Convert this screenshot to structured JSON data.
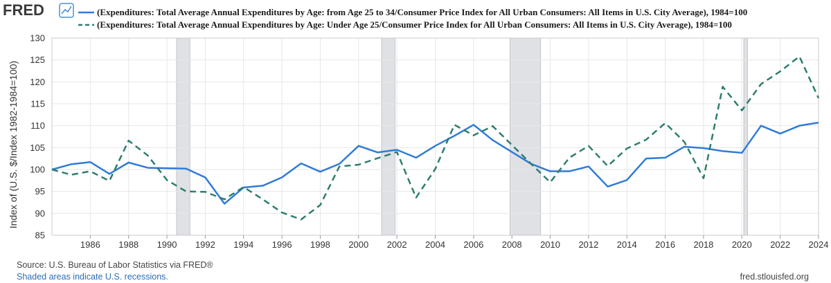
{
  "brand": {
    "logo_text": "FRED",
    "logo_icon": "line-chart-icon"
  },
  "footer": {
    "source": "Source: U.S. Bureau of Labor Statistics via FRED®",
    "shaded": "Shaded areas indicate U.S. recessions.",
    "site": "fred.stlouisfed.org"
  },
  "colors": {
    "series_a": "#2f7bd8",
    "series_b": "#2e7d6e",
    "recession": "#dfe1e5",
    "grid": "#e6e6e6",
    "plot_border": "#c8c8c8"
  },
  "chart_data": {
    "type": "line",
    "title": "",
    "xlabel": "",
    "ylabel": "Index of (U.S. $/Index 1982-1984=100)",
    "xlim": [
      1984,
      2024
    ],
    "ylim": [
      85,
      130
    ],
    "yticks": [
      85,
      90,
      95,
      100,
      105,
      110,
      115,
      120,
      125,
      130
    ],
    "xticks": [
      1986,
      1988,
      1990,
      1992,
      1994,
      1996,
      1998,
      2000,
      2002,
      2004,
      2006,
      2008,
      2010,
      2012,
      2014,
      2016,
      2018,
      2020,
      2022,
      2024
    ],
    "grid": true,
    "legend_position": "top",
    "recessions": [
      [
        1990.5,
        1991.2
      ],
      [
        2001.2,
        2001.9
      ],
      [
        2007.9,
        2009.5
      ],
      [
        2020.1,
        2020.3
      ]
    ],
    "series": [
      {
        "name": "(Expenditures: Total Average Annual Expenditures by Age: from Age 25 to 34/Consumer Price Index for All Urban Consumers: All Items in U.S. City Average), 1984=100",
        "style": "solid",
        "x": [
          1984,
          1985,
          1986,
          1987,
          1988,
          1989,
          1990,
          1991,
          1992,
          1993,
          1994,
          1995,
          1996,
          1997,
          1998,
          1999,
          2000,
          2001,
          2002,
          2003,
          2004,
          2005,
          2006,
          2007,
          2008,
          2009,
          2010,
          2011,
          2012,
          2013,
          2014,
          2015,
          2016,
          2017,
          2018,
          2019,
          2020,
          2021,
          2022,
          2023,
          2024
        ],
        "values": [
          100,
          101.2,
          101.7,
          99,
          101.6,
          100.4,
          100.3,
          100.2,
          98.2,
          92.2,
          95.9,
          96.3,
          98.2,
          101.4,
          99.5,
          101.3,
          105.4,
          103.9,
          104.5,
          102.7,
          105.4,
          107.7,
          110.2,
          106.7,
          104,
          101.3,
          99.6,
          99.6,
          100.7,
          96.1,
          97.6,
          102.5,
          102.7,
          105.2,
          104.9,
          104.2,
          103.8,
          110,
          108.2,
          110,
          110.7
        ]
      },
      {
        "name": "(Expenditures: Total Average Annual Expenditures by Age: Under Age 25/Consumer Price Index for All Urban Consumers: All Items in U.S. City Average), 1984=100",
        "style": "dashed",
        "x": [
          1984,
          1985,
          1986,
          1987,
          1988,
          1989,
          1990,
          1991,
          1992,
          1993,
          1994,
          1995,
          1996,
          1997,
          1998,
          1999,
          2000,
          2001,
          2002,
          2003,
          2004,
          2005,
          2006,
          2007,
          2008,
          2009,
          2010,
          2011,
          2012,
          2013,
          2014,
          2015,
          2016,
          2017,
          2018,
          2019,
          2020,
          2021,
          2022,
          2023,
          2024
        ],
        "values": [
          100,
          98.8,
          99.6,
          97.4,
          106.6,
          103.2,
          97.6,
          95,
          94.9,
          93.2,
          96,
          93.2,
          90.2,
          88.6,
          91.9,
          100.7,
          101.1,
          102.6,
          104,
          93.6,
          100.1,
          110.2,
          107.8,
          109.9,
          105.6,
          101.3,
          97.1,
          102.7,
          105.4,
          100.8,
          104.8,
          106.8,
          110.6,
          106.3,
          98,
          118.9,
          113.5,
          119.5,
          122.4,
          125.8,
          116.3
        ]
      }
    ]
  }
}
